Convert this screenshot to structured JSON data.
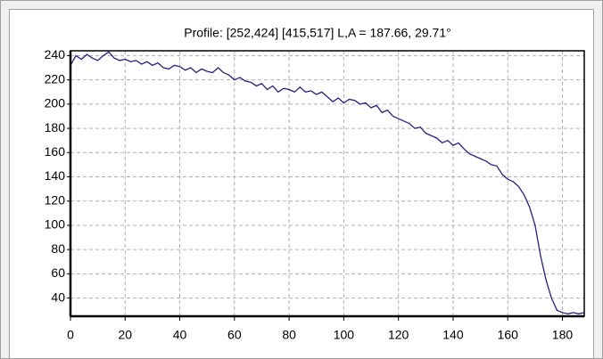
{
  "chart_data": {
    "type": "line",
    "title": "Profile: [252,424] [415,517]  L,A = 187.66, 29.71°",
    "x": [
      0,
      2,
      4,
      6,
      8,
      10,
      12,
      14,
      16,
      18,
      20,
      22,
      24,
      26,
      28,
      30,
      32,
      34,
      36,
      38,
      40,
      42,
      44,
      46,
      48,
      50,
      52,
      54,
      56,
      58,
      60,
      62,
      64,
      66,
      68,
      70,
      72,
      74,
      76,
      78,
      80,
      82,
      84,
      86,
      88,
      90,
      92,
      94,
      96,
      98,
      100,
      102,
      104,
      106,
      108,
      110,
      112,
      114,
      116,
      118,
      120,
      122,
      124,
      126,
      128,
      130,
      132,
      134,
      136,
      138,
      140,
      142,
      144,
      146,
      148,
      150,
      152,
      154,
      156,
      158,
      160,
      162,
      164,
      166,
      168,
      170,
      172,
      174,
      176,
      178,
      180,
      182,
      184,
      186,
      188
    ],
    "values": [
      232,
      240,
      237,
      241,
      238,
      236,
      240,
      243,
      238,
      236,
      237,
      235,
      236,
      233,
      235,
      232,
      234,
      230,
      229,
      232,
      231,
      228,
      230,
      226,
      229,
      227,
      226,
      230,
      226,
      224,
      220,
      222,
      219,
      218,
      215,
      217,
      212,
      215,
      210,
      213,
      212,
      210,
      214,
      210,
      211,
      208,
      210,
      206,
      202,
      205,
      201,
      204,
      203,
      200,
      201,
      197,
      199,
      193,
      195,
      190,
      188,
      186,
      184,
      180,
      181,
      176,
      174,
      172,
      168,
      170,
      166,
      168,
      163,
      159,
      157,
      155,
      153,
      150,
      149,
      142,
      138,
      136,
      132,
      125,
      115,
      100,
      75,
      55,
      40,
      30,
      28,
      27,
      28,
      27,
      28
    ],
    "color": "#23237f",
    "xlim": [
      0,
      188
    ],
    "ylim": [
      25,
      244
    ],
    "xticks": [
      0,
      20,
      40,
      60,
      80,
      100,
      120,
      140,
      160,
      180
    ],
    "yticks": [
      40,
      60,
      80,
      100,
      120,
      140,
      160,
      180,
      200,
      220,
      240
    ],
    "grid": true
  }
}
